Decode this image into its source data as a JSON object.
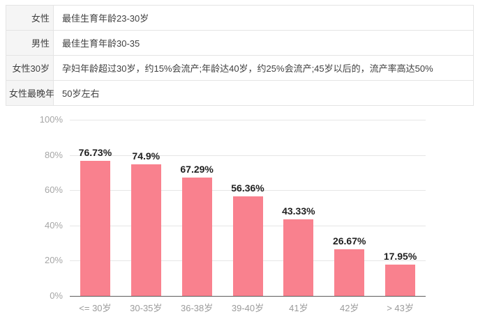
{
  "table": {
    "rows": [
      {
        "label": "女性",
        "value": "最佳生育年龄23-30岁"
      },
      {
        "label": "男性",
        "value": "最佳生育年龄30-35"
      },
      {
        "label": "女性30岁",
        "value": "孕妇年龄超过30岁，约15%会流产;年龄达40岁，约25%会流产;45岁以后的，流产率高达50%"
      },
      {
        "label": "女性最晚年",
        "value": "50岁左右"
      }
    ]
  },
  "chart_data": {
    "type": "bar",
    "categories": [
      "<= 30岁",
      "30-35岁",
      "36-38岁",
      "39-40岁",
      "41岁",
      "42岁",
      "> 43岁"
    ],
    "values": [
      76.73,
      74.9,
      67.29,
      56.36,
      43.33,
      26.67,
      17.95
    ],
    "value_labels": [
      "76.73%",
      "74.9%",
      "67.29%",
      "56.36%",
      "43.33%",
      "26.67%",
      "17.95%"
    ],
    "yticks": [
      0,
      20,
      40,
      60,
      80,
      100
    ],
    "ytick_labels": [
      "0%",
      "20%",
      "40%",
      "60%",
      "80%",
      "100%"
    ],
    "ylim": [
      0,
      100
    ],
    "grid": true,
    "legend": "none",
    "title": "",
    "xlabel": "",
    "ylabel": "",
    "bar_color": "#f9818e",
    "grid_color": "#e6e6e6",
    "axis_line_color": "#5c5c5c",
    "value_label_color": "#1f1f1f",
    "tick_label_color": "#a6a6a6"
  }
}
